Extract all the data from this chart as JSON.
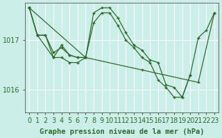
{
  "title": "Graphe pression niveau de la mer (hPa)",
  "bg_color": "#cceee8",
  "plot_bg_color": "#cceee8",
  "grid_color": "#ffffff",
  "line_color": "#2d6a2d",
  "marker_color": "#2d6a2d",
  "xlim": [
    -0.5,
    23.5
  ],
  "ylim": [
    1015.55,
    1017.75
  ],
  "yticks": [
    1016,
    1017
  ],
  "xticks": [
    0,
    1,
    2,
    3,
    4,
    5,
    6,
    7,
    8,
    9,
    10,
    11,
    12,
    13,
    14,
    15,
    16,
    17,
    18,
    19,
    20,
    21,
    22,
    23
  ],
  "series": [
    {
      "x": [
        0,
        1,
        2,
        3,
        4,
        5,
        6,
        7,
        8,
        9,
        10,
        11,
        12,
        13,
        14,
        15,
        16,
        17,
        18,
        19,
        20,
        21,
        22,
        23
      ],
      "y": [
        1017.65,
        1017.1,
        1017.1,
        1016.75,
        1016.85,
        1016.7,
        1016.65,
        1016.65,
        1017.55,
        1017.65,
        1017.65,
        1017.45,
        1017.15,
        1016.9,
        1016.8,
        1016.6,
        1016.55,
        1016.1,
        1016.05,
        1015.85,
        1016.3,
        1017.05,
        1017.2,
        1017.55
      ]
    },
    {
      "x": [
        0,
        1,
        2,
        3,
        4,
        5,
        6,
        7,
        8,
        9,
        10,
        11,
        12,
        13,
        14,
        15,
        16,
        17,
        18,
        19,
        20
      ],
      "y": [
        1017.65,
        1017.1,
        1017.1,
        1016.65,
        1016.9,
        1016.7,
        1016.65,
        1016.65,
        1017.35,
        1017.55,
        1017.55,
        1017.3,
        1017.0,
        1016.85,
        1016.65,
        1016.55,
        1016.2,
        1016.05,
        1015.85,
        1015.85,
        1016.3
      ]
    },
    {
      "x": [
        0,
        1,
        3,
        4,
        5,
        6,
        7
      ],
      "y": [
        1017.65,
        1017.1,
        1016.65,
        1016.65,
        1016.55,
        1016.55,
        1016.65
      ]
    },
    {
      "x": [
        0,
        7,
        14,
        21,
        23
      ],
      "y": [
        1017.65,
        1016.65,
        1016.4,
        1016.15,
        1017.55
      ]
    }
  ],
  "xlabel_fontsize": 7,
  "ylabel_fontsize": 7,
  "title_fontsize": 7.5
}
